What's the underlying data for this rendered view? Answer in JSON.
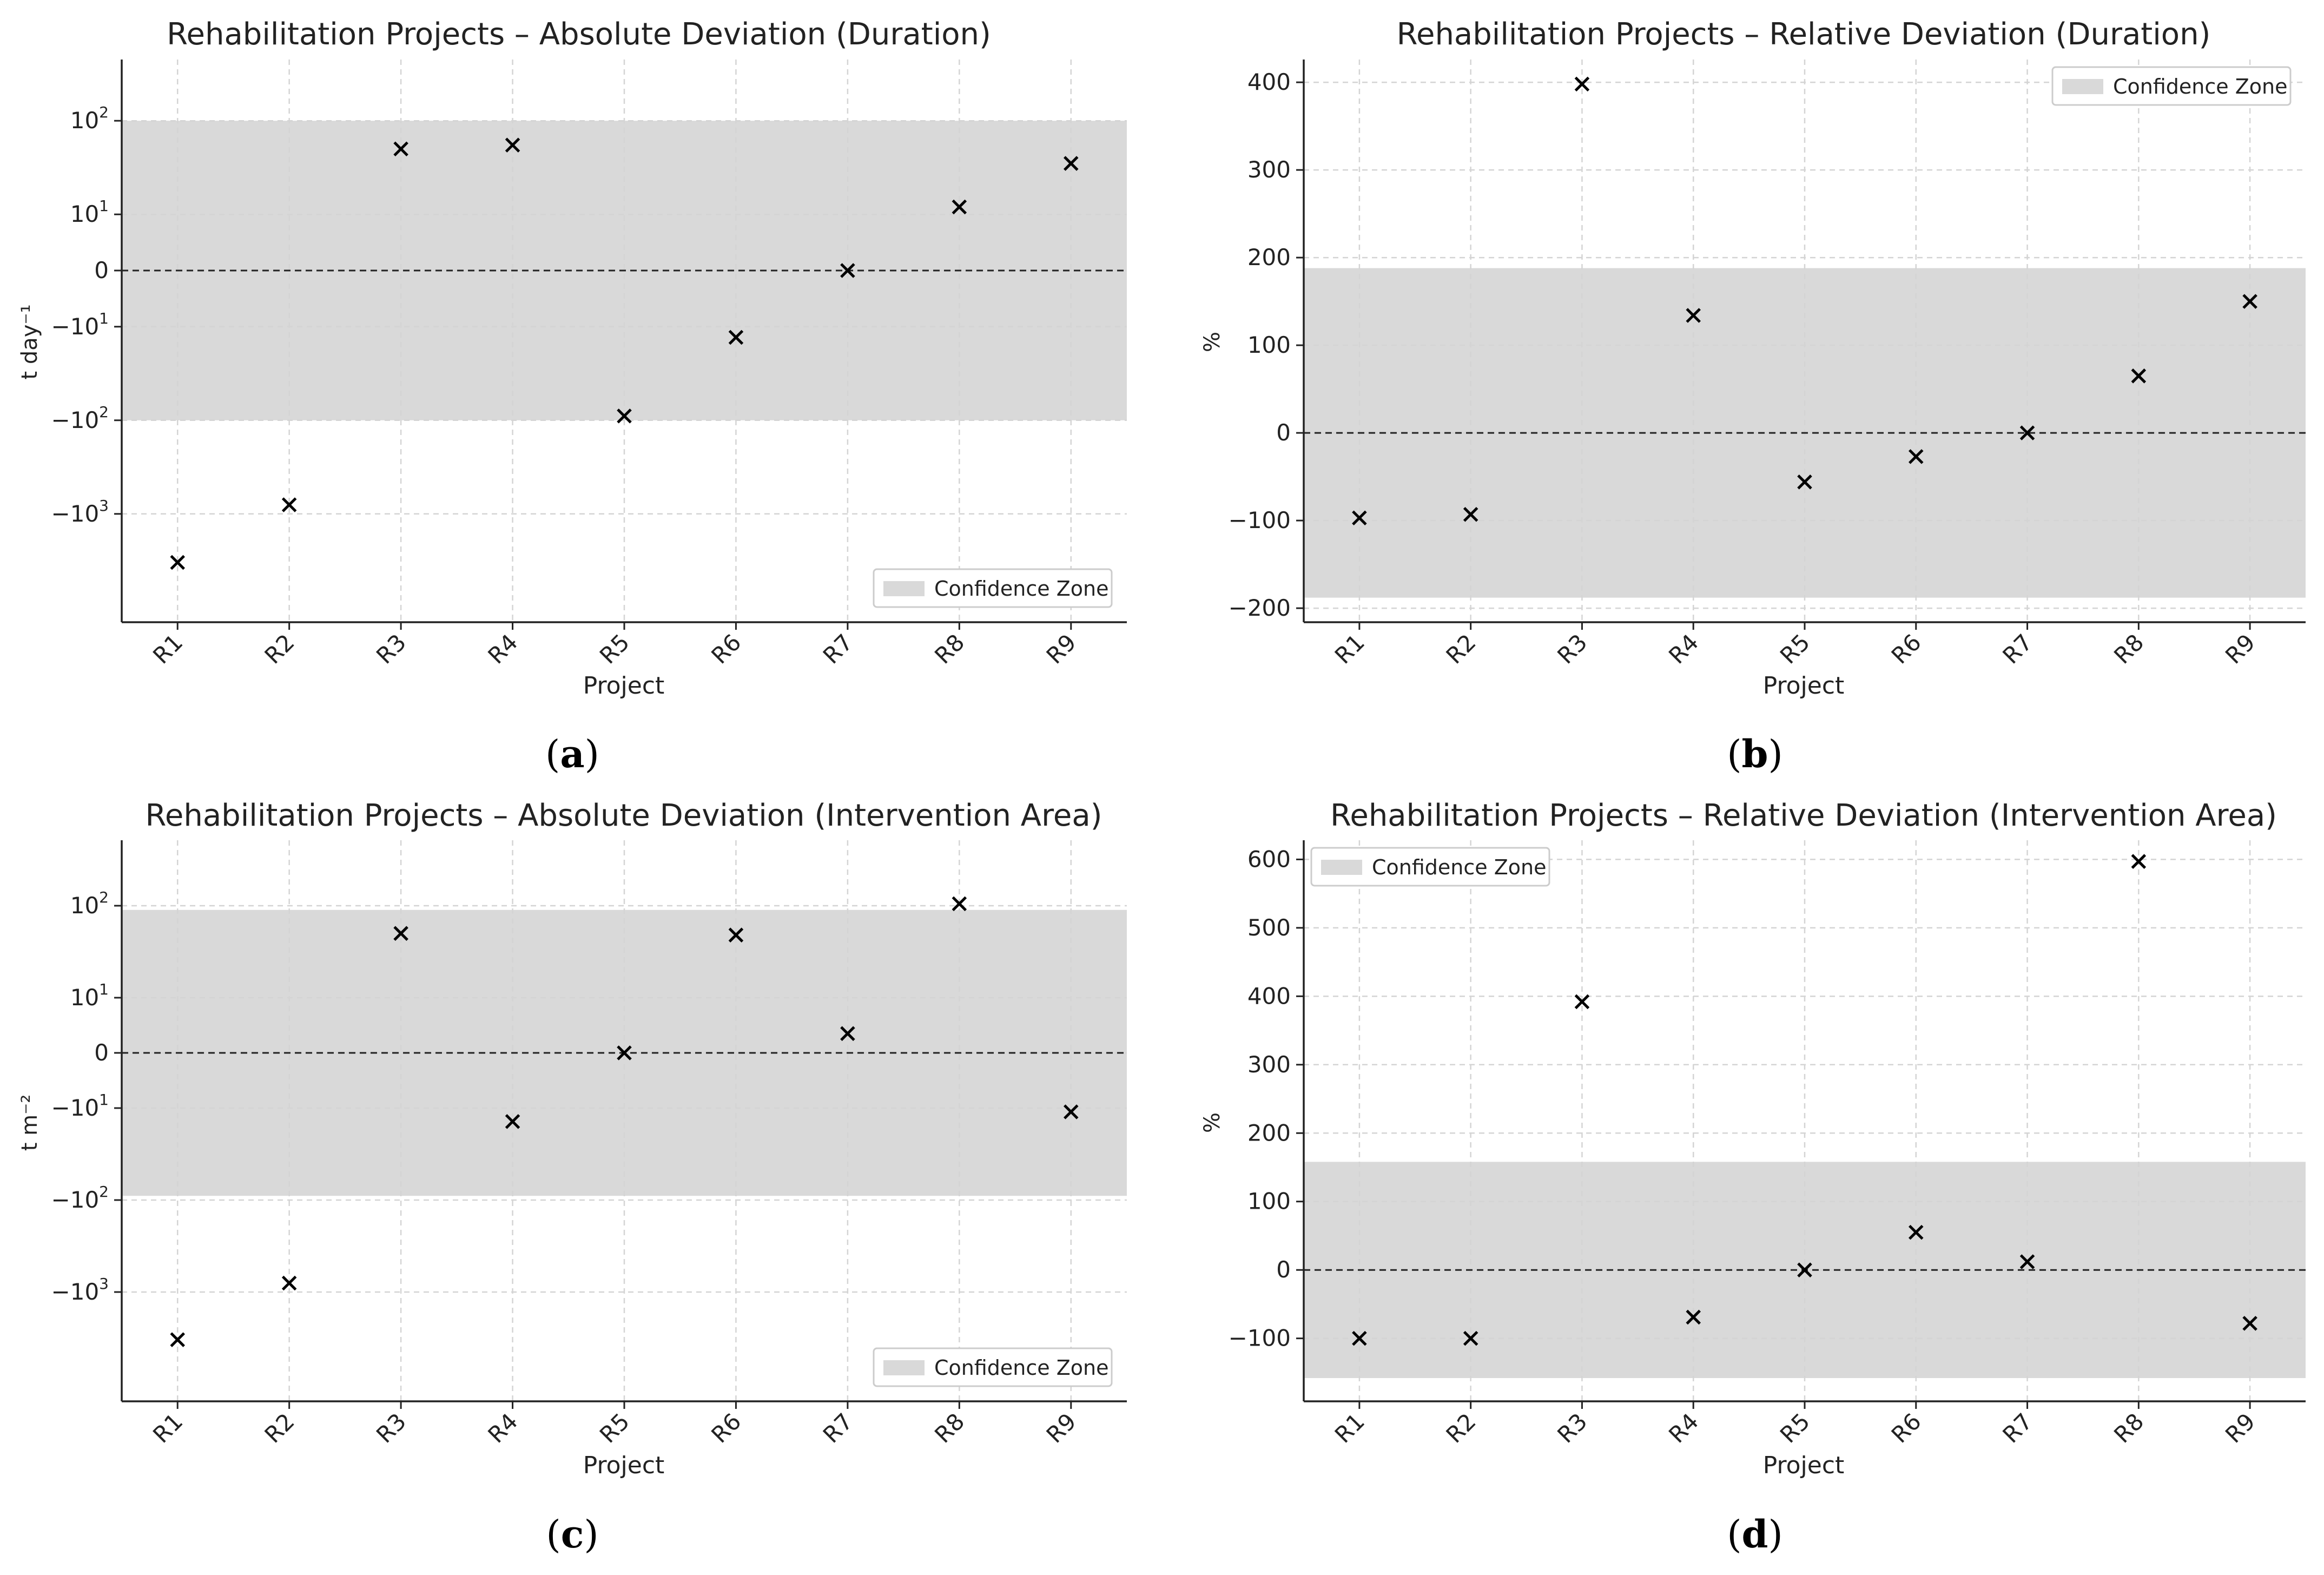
{
  "panel_captions": [
    "a",
    "b",
    "c",
    "d"
  ],
  "chart_data": [
    {
      "type": "scatter",
      "title": "Rehabilitation Projects – Absolute Deviation (Duration)",
      "xlabel": "Project",
      "ylabel": "t day⁻¹",
      "y_scale": "symlog",
      "grid": true,
      "categories": [
        "R1",
        "R2",
        "R3",
        "R4",
        "R5",
        "R6",
        "R7",
        "R8",
        "R9"
      ],
      "values": [
        -3300,
        -800,
        50,
        55,
        -90,
        -13,
        0,
        12,
        35
      ],
      "reference_line": 0,
      "confidence_zone": [
        -100,
        100
      ],
      "legend": {
        "label": "Confidence Zone",
        "placement": "lower-right"
      },
      "y_ticks": [
        {
          "value": 100,
          "base": "10",
          "exp": "2",
          "sign": ""
        },
        {
          "value": 10,
          "base": "10",
          "exp": "1",
          "sign": ""
        },
        {
          "value": 0,
          "text": "0"
        },
        {
          "value": -10,
          "base": "10",
          "exp": "1",
          "sign": "−"
        },
        {
          "value": -100,
          "base": "10",
          "exp": "2",
          "sign": "−"
        },
        {
          "value": -1000,
          "base": "10",
          "exp": "3",
          "sign": "−"
        }
      ],
      "marker": "x",
      "colors": {
        "marker": "#000000",
        "zone": "#d9d9d9",
        "reference": "#222222",
        "grid": "#d4d4d4"
      }
    },
    {
      "type": "scatter",
      "title": "Rehabilitation Projects – Relative Deviation (Duration)",
      "xlabel": "Project",
      "ylabel": "%",
      "y_scale": "linear",
      "grid": true,
      "categories": [
        "R1",
        "R2",
        "R3",
        "R4",
        "R5",
        "R6",
        "R7",
        "R8",
        "R9"
      ],
      "values": [
        -97,
        -93,
        398,
        134,
        -56,
        -27,
        0,
        65,
        150
      ],
      "reference_line": 0,
      "confidence_zone": [
        -188,
        188
      ],
      "legend": {
        "label": "Confidence Zone",
        "placement": "upper-right"
      },
      "ylim": [
        -216,
        426
      ],
      "y_ticks": [
        {
          "value": 400,
          "text": "400"
        },
        {
          "value": 300,
          "text": "300"
        },
        {
          "value": 200,
          "text": "200"
        },
        {
          "value": 100,
          "text": "100"
        },
        {
          "value": 0,
          "text": "0"
        },
        {
          "value": -100,
          "text": "−100"
        },
        {
          "value": -200,
          "text": "−200"
        }
      ],
      "marker": "x",
      "colors": {
        "marker": "#000000",
        "zone": "#d9d9d9",
        "reference": "#222222",
        "grid": "#d4d4d4"
      }
    },
    {
      "type": "scatter",
      "title": "Rehabilitation Projects – Absolute Deviation (Intervention Area)",
      "xlabel": "Project",
      "ylabel": "t m⁻²",
      "y_scale": "symlog",
      "grid": true,
      "categories": [
        "R1",
        "R2",
        "R3",
        "R4",
        "R5",
        "R6",
        "R7",
        "R8",
        "R9"
      ],
      "values": [
        -3300,
        -800,
        50,
        -14,
        0,
        48,
        3.5,
        105,
        -11
      ],
      "reference_line": 0,
      "confidence_zone": [
        -90,
        90
      ],
      "legend": {
        "label": "Confidence Zone",
        "placement": "lower-right"
      },
      "y_ticks": [
        {
          "value": 100,
          "base": "10",
          "exp": "2",
          "sign": ""
        },
        {
          "value": 10,
          "base": "10",
          "exp": "1",
          "sign": ""
        },
        {
          "value": 0,
          "text": "0"
        },
        {
          "value": -10,
          "base": "10",
          "exp": "1",
          "sign": "−"
        },
        {
          "value": -100,
          "base": "10",
          "exp": "2",
          "sign": "−"
        },
        {
          "value": -1000,
          "base": "10",
          "exp": "3",
          "sign": "−"
        }
      ],
      "marker": "x",
      "colors": {
        "marker": "#000000",
        "zone": "#d9d9d9",
        "reference": "#222222",
        "grid": "#d4d4d4"
      }
    },
    {
      "type": "scatter",
      "title": "Rehabilitation Projects – Relative Deviation (Intervention Area)",
      "xlabel": "Project",
      "ylabel": "%",
      "y_scale": "linear",
      "grid": true,
      "categories": [
        "R1",
        "R2",
        "R3",
        "R4",
        "R5",
        "R6",
        "R7",
        "R8",
        "R9"
      ],
      "values": [
        -100,
        -100,
        392,
        -69,
        0,
        55,
        12,
        597,
        -78
      ],
      "reference_line": 0,
      "confidence_zone": [
        -158,
        158
      ],
      "legend": {
        "label": "Confidence Zone",
        "placement": "upper-left"
      },
      "ylim": [
        -192,
        628
      ],
      "y_ticks": [
        {
          "value": 600,
          "text": "600"
        },
        {
          "value": 500,
          "text": "500"
        },
        {
          "value": 400,
          "text": "400"
        },
        {
          "value": 300,
          "text": "300"
        },
        {
          "value": 200,
          "text": "200"
        },
        {
          "value": 100,
          "text": "100"
        },
        {
          "value": 0,
          "text": "0"
        },
        {
          "value": -100,
          "text": "−100"
        }
      ],
      "marker": "x",
      "colors": {
        "marker": "#000000",
        "zone": "#d9d9d9",
        "reference": "#222222",
        "grid": "#d4d4d4"
      }
    }
  ]
}
